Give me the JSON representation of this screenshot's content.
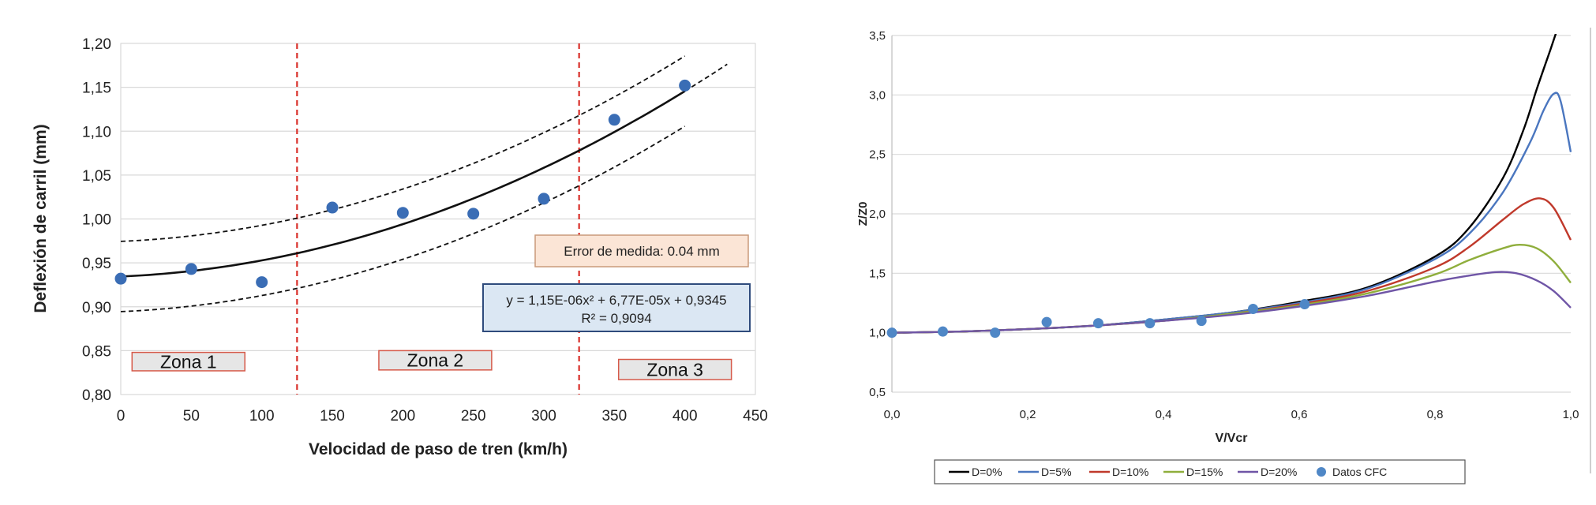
{
  "chart_data": [
    {
      "type": "scatter",
      "title": "",
      "xlabel": "Velocidad de paso de tren (km/h)",
      "ylabel": "Deflexión de carril (mm)",
      "xlim": [
        0,
        450
      ],
      "ylim": [
        0.8,
        1.2
      ],
      "x_ticks": [
        "0",
        "50",
        "100",
        "150",
        "200",
        "250",
        "300",
        "350",
        "400",
        "450"
      ],
      "y_ticks": [
        "0,80",
        "0,85",
        "0,90",
        "0,95",
        "1,00",
        "1,05",
        "1,10",
        "1,15",
        "1,20"
      ],
      "grid": "horizontal",
      "points": {
        "x": [
          0,
          50,
          100,
          150,
          200,
          250,
          300,
          350,
          400
        ],
        "y": [
          0.932,
          0.943,
          0.928,
          1.013,
          1.007,
          1.006,
          1.023,
          1.113,
          1.152
        ]
      },
      "fit": {
        "a": 1.15e-06,
        "b": 6.77e-05,
        "c": 0.9345,
        "band": 0.04,
        "x_end": 430
      },
      "vlines": [
        125,
        325
      ],
      "zones": [
        {
          "label": "Zona 1",
          "x": [
            8,
            88
          ],
          "y": [
            0.827,
            0.848
          ]
        },
        {
          "label": "Zona 2",
          "x": [
            183,
            263
          ],
          "y": [
            0.828,
            0.85
          ]
        },
        {
          "label": "Zona 3",
          "x": [
            353,
            433
          ],
          "y": [
            0.817,
            0.84
          ]
        }
      ],
      "annotations": {
        "error": "Error de medida: 0.04 mm",
        "equation": "y = 1,15E-06x² + 6,77E-05x + 0,9345",
        "r2": "R² = 0,9094"
      },
      "colors": {
        "points": "#3a6db5",
        "fit": "#111111",
        "band": "#111111",
        "vline": "#d9302a",
        "zone_border": "#d65a4a",
        "zone_fill": "#e6e6e6",
        "error_fill": "#fbe5d6",
        "eq_fill": "#dbe7f3",
        "eq_border": "#2f4b7c"
      }
    },
    {
      "type": "line",
      "title": "",
      "xlabel": "V/Vcr",
      "ylabel": "Z/Z0",
      "xlim": [
        0,
        1.0
      ],
      "ylim": [
        0.5,
        3.5
      ],
      "x_ticks": [
        "0,0",
        "0,2",
        "0,4",
        "0,6",
        "0,8",
        "1,0"
      ],
      "y_ticks": [
        "0,5",
        "1,0",
        "1,5",
        "2,0",
        "2,5",
        "3,0",
        "3,5"
      ],
      "grid": "horizontal",
      "legend_position": "bottom",
      "series": [
        {
          "name": "D=0%",
          "color": "#000000",
          "x": [
            0,
            0.1,
            0.2,
            0.3,
            0.4,
            0.5,
            0.6,
            0.7,
            0.8,
            0.85,
            0.9,
            0.93,
            0.95,
            0.97,
            0.98
          ],
          "y": [
            1.0,
            1.01,
            1.03,
            1.06,
            1.11,
            1.17,
            1.26,
            1.38,
            1.64,
            1.88,
            2.3,
            2.7,
            3.05,
            3.38,
            3.55
          ]
        },
        {
          "name": "D=5%",
          "color": "#4a76bf",
          "x": [
            0,
            0.1,
            0.2,
            0.3,
            0.4,
            0.5,
            0.6,
            0.7,
            0.8,
            0.85,
            0.9,
            0.94,
            0.96,
            0.975,
            0.985,
            1.0
          ],
          "y": [
            1.0,
            1.01,
            1.03,
            1.06,
            1.11,
            1.17,
            1.25,
            1.37,
            1.62,
            1.83,
            2.18,
            2.6,
            2.87,
            3.01,
            2.95,
            2.52
          ]
        },
        {
          "name": "D=10%",
          "color": "#c0392b",
          "x": [
            0,
            0.1,
            0.2,
            0.3,
            0.4,
            0.5,
            0.6,
            0.7,
            0.8,
            0.85,
            0.9,
            0.93,
            0.955,
            0.975,
            1.0
          ],
          "y": [
            1.0,
            1.01,
            1.03,
            1.06,
            1.1,
            1.16,
            1.24,
            1.35,
            1.55,
            1.72,
            1.95,
            2.08,
            2.13,
            2.05,
            1.78
          ]
        },
        {
          "name": "D=15%",
          "color": "#8fae3c",
          "x": [
            0,
            0.1,
            0.2,
            0.3,
            0.4,
            0.5,
            0.6,
            0.7,
            0.8,
            0.85,
            0.9,
            0.925,
            0.95,
            0.975,
            1.0
          ],
          "y": [
            1.0,
            1.01,
            1.03,
            1.06,
            1.1,
            1.16,
            1.23,
            1.33,
            1.49,
            1.61,
            1.71,
            1.74,
            1.71,
            1.6,
            1.42
          ]
        },
        {
          "name": "D=20%",
          "color": "#6f55a6",
          "x": [
            0,
            0.1,
            0.2,
            0.3,
            0.4,
            0.5,
            0.6,
            0.7,
            0.8,
            0.85,
            0.89,
            0.92,
            0.95,
            0.975,
            1.0
          ],
          "y": [
            1.0,
            1.01,
            1.03,
            1.06,
            1.1,
            1.15,
            1.22,
            1.31,
            1.43,
            1.48,
            1.51,
            1.5,
            1.44,
            1.35,
            1.21
          ]
        }
      ],
      "scatter": {
        "name": "Datos CFC",
        "color": "#4f87c6",
        "x": [
          0.0,
          0.075,
          0.152,
          0.228,
          0.304,
          0.38,
          0.456,
          0.532,
          0.608
        ],
        "y": [
          1.0,
          1.01,
          1.0,
          1.09,
          1.08,
          1.08,
          1.1,
          1.2,
          1.24
        ]
      }
    }
  ]
}
